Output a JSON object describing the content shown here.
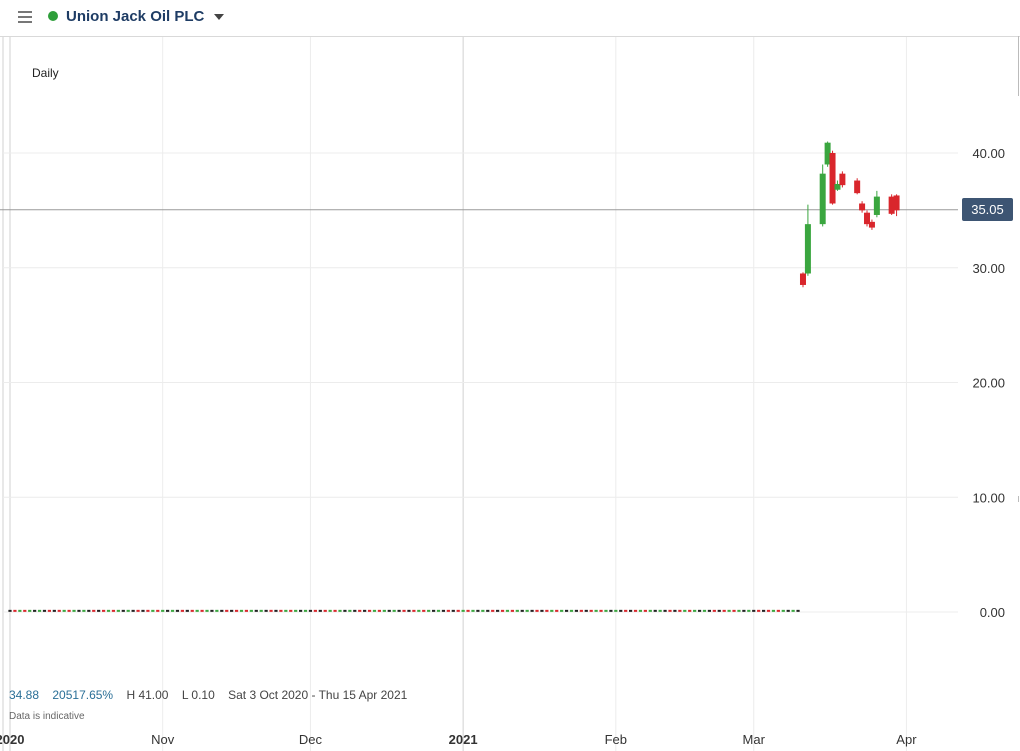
{
  "header": {
    "instrument": "Union Jack Oil PLC",
    "status_color": "#2e9e3a"
  },
  "chart_data": {
    "type": "candlestick",
    "period_label": "Daily",
    "y_ticks": [
      "40.00",
      "30.00",
      "20.00",
      "10.00",
      "0.00"
    ],
    "y_tick_values": [
      40,
      30,
      20,
      10,
      0
    ],
    "ylim": [
      -10,
      50
    ],
    "x_ticks": [
      {
        "label": "2020",
        "date": "2020-10-01",
        "major": true
      },
      {
        "label": "Nov",
        "date": "2020-11-01",
        "major": false
      },
      {
        "label": "Dec",
        "date": "2020-12-01",
        "major": false
      },
      {
        "label": "2021",
        "date": "2021-01-01",
        "major": true
      },
      {
        "label": "Feb",
        "date": "2021-02-01",
        "major": false
      },
      {
        "label": "Mar",
        "date": "2021-03-01",
        "major": false
      },
      {
        "label": "Apr",
        "date": "2021-04-01",
        "major": false
      }
    ],
    "xlim": [
      "2020-10-01",
      "2021-04-20"
    ],
    "current_price": 35.05,
    "current_price_label": "35.05",
    "up_color": "#3aa63f",
    "down_color": "#d9262c",
    "flat_color": "#222222",
    "flat_series": {
      "start": "2020-10-01",
      "end": "2021-03-10",
      "value": 0.1
    },
    "candles": [
      {
        "date": "2021-03-11",
        "open": 29.5,
        "high": 29.6,
        "low": 28.3,
        "close": 28.5
      },
      {
        "date": "2021-03-12",
        "open": 29.5,
        "high": 35.5,
        "low": 29.3,
        "close": 33.8
      },
      {
        "date": "2021-03-15",
        "open": 33.8,
        "high": 39.0,
        "low": 33.6,
        "close": 38.2
      },
      {
        "date": "2021-03-16",
        "open": 39.0,
        "high": 41.0,
        "low": 38.8,
        "close": 40.9
      },
      {
        "date": "2021-03-17",
        "open": 40.0,
        "high": 40.2,
        "low": 35.5,
        "close": 35.6
      },
      {
        "date": "2021-03-18",
        "open": 36.8,
        "high": 37.6,
        "low": 36.7,
        "close": 37.3
      },
      {
        "date": "2021-03-19",
        "open": 38.2,
        "high": 38.4,
        "low": 37.0,
        "close": 37.2
      },
      {
        "date": "2021-03-22",
        "open": 37.6,
        "high": 37.8,
        "low": 36.4,
        "close": 36.5
      },
      {
        "date": "2021-03-23",
        "open": 35.6,
        "high": 35.8,
        "low": 34.8,
        "close": 35.0
      },
      {
        "date": "2021-03-24",
        "open": 34.8,
        "high": 35.0,
        "low": 33.6,
        "close": 33.8
      },
      {
        "date": "2021-03-25",
        "open": 34.0,
        "high": 34.2,
        "low": 33.3,
        "close": 33.5
      },
      {
        "date": "2021-03-26",
        "open": 34.6,
        "high": 36.7,
        "low": 34.4,
        "close": 36.2
      },
      {
        "date": "2021-03-29",
        "open": 36.2,
        "high": 36.4,
        "low": 34.6,
        "close": 34.7
      },
      {
        "date": "2021-03-30",
        "open": 36.3,
        "high": 36.4,
        "low": 34.5,
        "close": 35.0
      }
    ]
  },
  "stats": {
    "close": "34.88",
    "change_pct": "20517.65%",
    "high": "H 41.00",
    "low": "L 0.10",
    "range": "Sat 3 Oct 2020 - Thu 15 Apr 2021"
  },
  "disclaimer": "Data is indicative"
}
